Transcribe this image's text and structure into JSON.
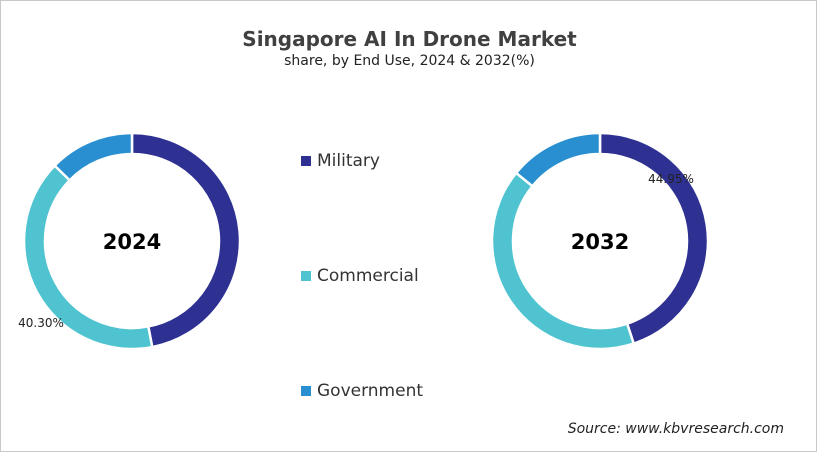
{
  "chart_data": {
    "type": "donut",
    "title": "Singapore AI In Drone Market",
    "subtitle": "share, by End Use, 2024 & 2032(%)",
    "categories": [
      "Military",
      "Commercial",
      "Government"
    ],
    "colors": [
      "#2E3192",
      "#4FC3CF",
      "#2A8FD0"
    ],
    "legend_position": "center",
    "charts": [
      {
        "label": "2024",
        "values": [
          47.0,
          40.3,
          12.7
        ],
        "data_labels": [
          {
            "category": "Commercial",
            "text": "40.30%"
          }
        ]
      },
      {
        "label": "2032",
        "values": [
          44.95,
          40.9,
          14.15
        ],
        "data_labels": [
          {
            "category": "Military",
            "text": "44.95%"
          }
        ]
      }
    ]
  },
  "source": "Source: www.kbvresearch.com"
}
